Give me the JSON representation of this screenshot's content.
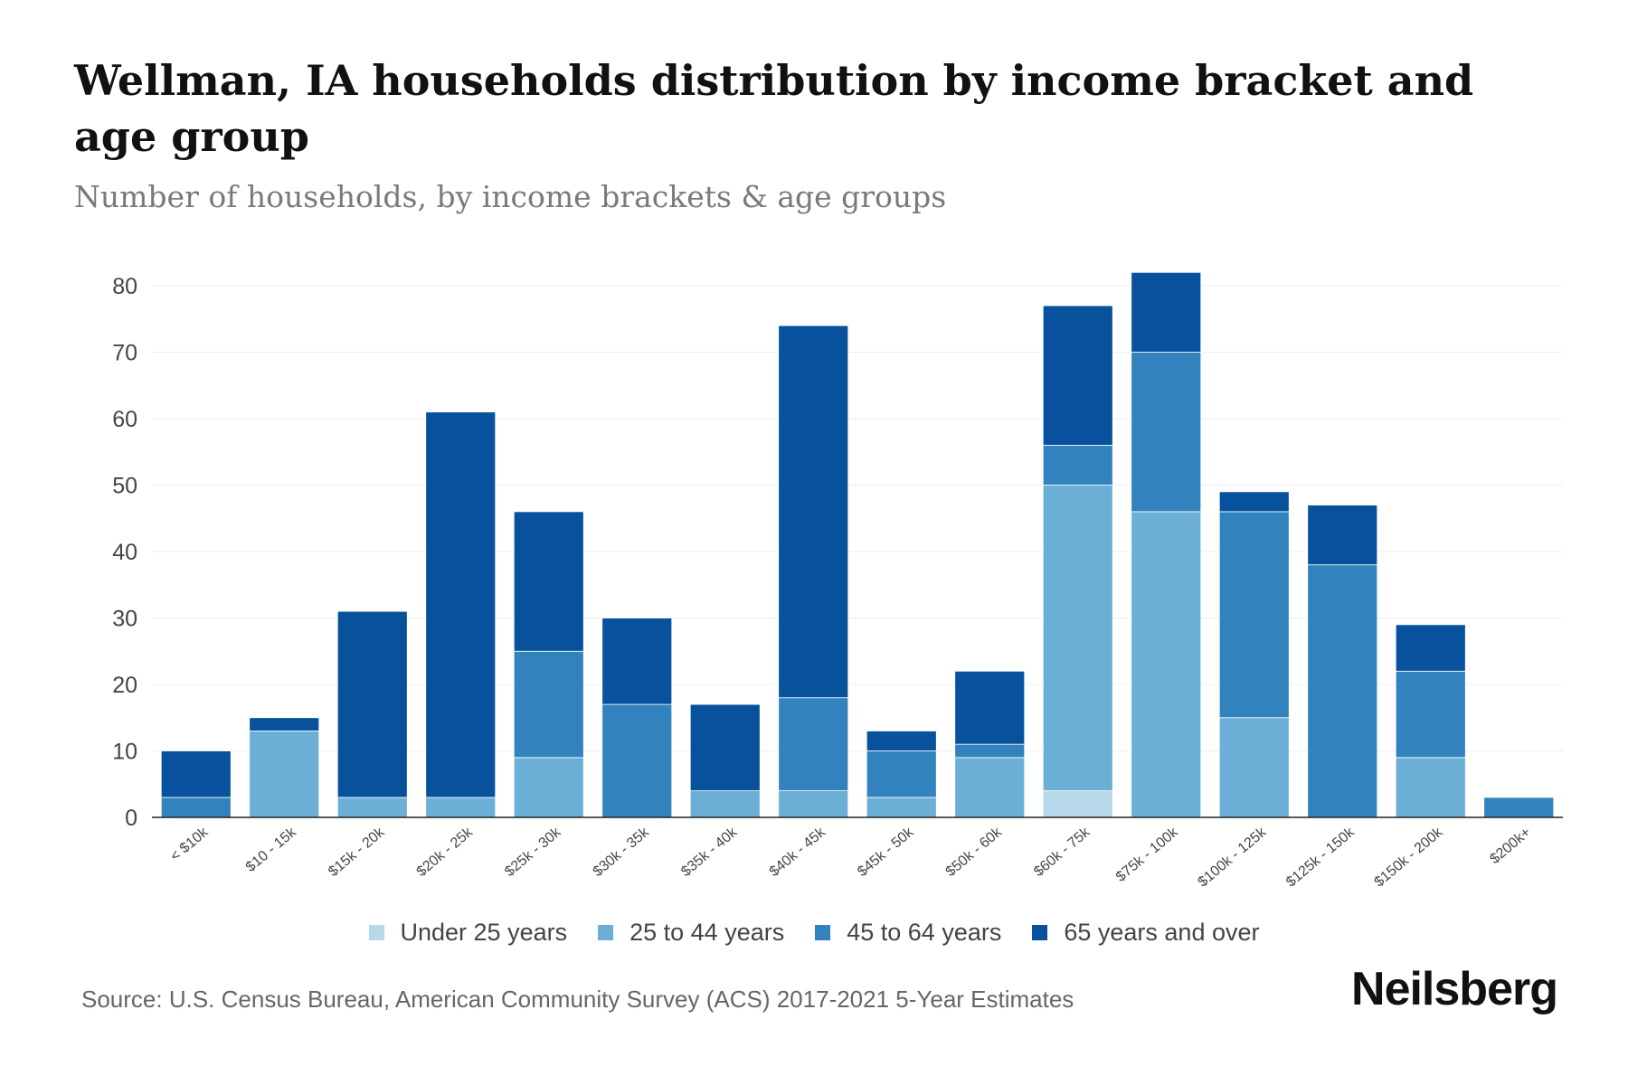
{
  "header": {
    "title": "Wellman, IA households distribution by income bracket and age group",
    "subtitle": "Number of households, by income brackets & age groups"
  },
  "footer": {
    "source": "Source: U.S. Census Bureau, American Community Survey (ACS) 2017-2021 5-Year Estimates",
    "brand": "Neilsberg"
  },
  "chart_data": {
    "type": "bar",
    "stacked": true,
    "title": "Wellman, IA households distribution by income bracket and age group",
    "subtitle": "Number of households, by income brackets & age groups",
    "xlabel": "",
    "ylabel": "",
    "ylim": [
      0,
      80
    ],
    "yticks": [
      0,
      10,
      20,
      30,
      40,
      50,
      60,
      70,
      80
    ],
    "grid": true,
    "legend_position": "bottom",
    "categories": [
      "< $10k",
      "$10 - 15k",
      "$15k - 20k",
      "$20k - 25k",
      "$25k - 30k",
      "$30k - 35k",
      "$35k - 40k",
      "$40k - 45k",
      "$45k - 50k",
      "$50k - 60k",
      "$60k - 75k",
      "$75k - 100k",
      "$100k - 125k",
      "$125k - 150k",
      "$150k - 200k",
      "$200k+"
    ],
    "series": [
      {
        "name": "Under 25 years",
        "color": "#b7d9ea",
        "values": [
          0,
          0,
          0,
          0,
          0,
          0,
          0,
          0,
          0,
          0,
          4,
          0,
          0,
          0,
          0,
          0
        ]
      },
      {
        "name": "25 to 44 years",
        "color": "#6baed6",
        "values": [
          0,
          13,
          3,
          3,
          9,
          0,
          4,
          4,
          3,
          9,
          46,
          46,
          15,
          0,
          9,
          0
        ]
      },
      {
        "name": "45 to 64 years",
        "color": "#3182bd",
        "values": [
          3,
          0,
          0,
          0,
          16,
          17,
          0,
          14,
          7,
          2,
          6,
          24,
          31,
          38,
          13,
          3
        ]
      },
      {
        "name": "65 years and over",
        "color": "#08519c",
        "values": [
          7,
          2,
          28,
          58,
          21,
          13,
          13,
          56,
          3,
          11,
          21,
          12,
          3,
          9,
          7,
          0
        ]
      }
    ]
  }
}
